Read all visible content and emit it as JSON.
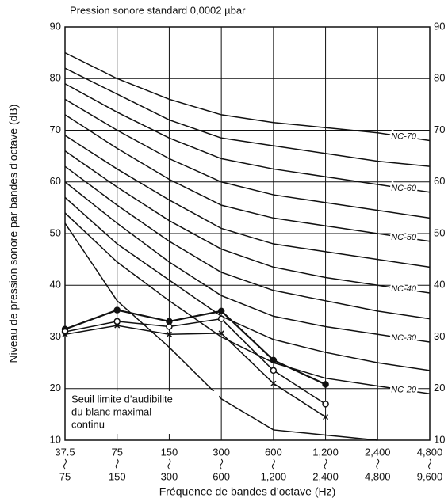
{
  "chart_data": {
    "type": "line",
    "title": "Pression sonore standard 0,0002 µbar",
    "ylabel": "Niveau de pression sonore par bandes d’octave (dB)",
    "xlabel": "Fréquence de bandes d’octave (Hz)",
    "categories": [
      [
        "37.5",
        "75"
      ],
      [
        "75",
        "150"
      ],
      [
        "150",
        "300"
      ],
      [
        "300",
        "600"
      ],
      [
        "600",
        "1,200"
      ],
      [
        "1,200",
        "2,400"
      ],
      [
        "2,400",
        "4,800"
      ],
      [
        "4,800",
        "9,600"
      ]
    ],
    "ylim": [
      10,
      90
    ],
    "yticks": [
      10,
      20,
      30,
      40,
      50,
      60,
      70,
      80,
      90
    ],
    "grid": true,
    "annotation": [
      "Seuil limite d’audibilite",
      "du blanc maximal",
      "continu"
    ],
    "series": [
      {
        "name": "NC-70",
        "color": "#111",
        "values": [
          85,
          80,
          76,
          73,
          71.5,
          70.5,
          69.5,
          68
        ]
      },
      {
        "color": "#111",
        "values": [
          82,
          77,
          72,
          68.5,
          67,
          65.5,
          64,
          63
        ]
      },
      {
        "name": "NC-60",
        "color": "#111",
        "values": [
          79,
          73.5,
          68.5,
          64.5,
          62.5,
          61,
          59.5,
          58
        ]
      },
      {
        "color": "#111",
        "values": [
          76,
          70,
          64.5,
          60,
          57.5,
          56,
          54.5,
          53
        ]
      },
      {
        "name": "NC-50",
        "color": "#111",
        "values": [
          73,
          66.5,
          60.5,
          55.5,
          53,
          51.5,
          50,
          48.5
        ]
      },
      {
        "color": "#111",
        "values": [
          69,
          62.5,
          56.5,
          51,
          48,
          46.5,
          45,
          43.5
        ]
      },
      {
        "name": "NC-40",
        "color": "#111",
        "values": [
          66,
          59,
          52.5,
          47,
          43.5,
          41.5,
          40,
          38.5
        ]
      },
      {
        "color": "#111",
        "values": [
          63,
          55.5,
          48.5,
          42.5,
          39,
          37,
          35,
          33.5
        ]
      },
      {
        "name": "NC-30",
        "color": "#111",
        "values": [
          60,
          52,
          44.5,
          38,
          34,
          32,
          30.5,
          29
        ]
      },
      {
        "color": "#111",
        "values": [
          57,
          48,
          41,
          34,
          29.5,
          27,
          25,
          23.5
        ]
      },
      {
        "name": "NC-20",
        "color": "#111",
        "values": [
          54,
          44.5,
          37,
          30,
          25,
          22,
          20.5,
          19
        ]
      },
      {
        "color": "#111",
        "values": [
          52,
          37,
          28,
          18,
          12,
          11,
          10,
          null
        ]
      },
      {
        "color": "#111",
        "marker": "filled-circle",
        "values": [
          31.5,
          35.2,
          33,
          35,
          25.5,
          20.8,
          null,
          null
        ]
      },
      {
        "color": "#111",
        "marker": "open-circle",
        "values": [
          31,
          33,
          32,
          33.5,
          23.5,
          17,
          null,
          null
        ]
      },
      {
        "color": "#111",
        "marker": "x",
        "values": [
          30.5,
          32.2,
          30.5,
          30.7,
          21,
          14.5,
          null,
          null
        ]
      }
    ]
  }
}
